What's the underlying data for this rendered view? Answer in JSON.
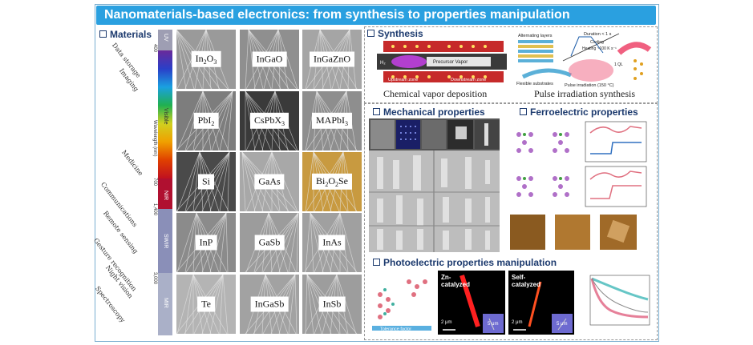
{
  "banner": {
    "title": "Nanomaterials-based electronics: from synthesis to properties manipulation"
  },
  "sections": {
    "materials": "Materials",
    "synthesis": "Synthesis",
    "mechanical": "Mechanical properties",
    "ferroelectric": "Ferroelectric properties",
    "photoelectric": "Photoelectric properties manipulation"
  },
  "applications": [
    "Data storage",
    "Imaging",
    "Medicine",
    "Communications",
    "Remote sensing",
    "Gesture recognition",
    "Night vision",
    "Spectroscopy"
  ],
  "spectrum": {
    "axis_label": "Wavelength (nm)",
    "bands": [
      "UV",
      "Visible",
      "NIR",
      "SWIR",
      "MIR"
    ],
    "ticks": [
      "400",
      "700",
      "1,400",
      "3,000"
    ],
    "colors": {
      "uv": "#9e9eb3",
      "nir": "#b01030",
      "swir": "#8a8fb8",
      "mir": "#aab0c8"
    }
  },
  "materials": [
    {
      "main": "In",
      "sub1": "2",
      "mid": "O",
      "sub2": "3"
    },
    {
      "main": "InGaO",
      "sub1": "",
      "mid": "",
      "sub2": ""
    },
    {
      "main": "InGaZnO",
      "sub1": "",
      "mid": "",
      "sub2": ""
    },
    {
      "main": "PbI",
      "sub1": "2",
      "mid": "",
      "sub2": ""
    },
    {
      "main": "CsPbX",
      "sub1": "3",
      "mid": "",
      "sub2": ""
    },
    {
      "main": "MAPbI",
      "sub1": "3",
      "mid": "",
      "sub2": ""
    },
    {
      "main": "Si",
      "sub1": "",
      "mid": "",
      "sub2": ""
    },
    {
      "main": "GaAs",
      "sub1": "",
      "mid": "",
      "sub2": ""
    },
    {
      "main": "Bi",
      "sub1": "2",
      "mid": "O",
      "sub2": "2",
      "tail": "Se"
    },
    {
      "main": "InP",
      "sub1": "",
      "mid": "",
      "sub2": ""
    },
    {
      "main": "GaSb",
      "sub1": "",
      "mid": "",
      "sub2": ""
    },
    {
      "main": "InAs",
      "sub1": "",
      "mid": "",
      "sub2": ""
    },
    {
      "main": "Te",
      "sub1": "",
      "mid": "",
      "sub2": ""
    },
    {
      "main": "InGaSb",
      "sub1": "",
      "mid": "",
      "sub2": ""
    },
    {
      "main": "InSb",
      "sub1": "",
      "mid": "",
      "sub2": ""
    }
  ],
  "synthesis": {
    "cvd_caption": "Chemical vapor deposition",
    "pulse_caption": "Pulse irradiation synthesis",
    "cvd_labels": {
      "h2": "H₂",
      "precursor": "Precursor Vapor",
      "upstream": "Upstream zone",
      "downstream": "Downstream zone"
    },
    "pulse_labels": {
      "layers": "Alternating layers",
      "flexible": "Flexible substrates",
      "irradiation": "Pulse irradiation (150 °C)",
      "duration": "Duration < 1 s",
      "cooling": "Cooling",
      "heating": "Heating ~100 K s⁻¹",
      "ql": "1 QL"
    }
  },
  "photo": {
    "zn": "Zn-\ncatalyzed",
    "self": "Self-\ncatalyzed",
    "scale1": "2 μm",
    "scale2": "5 μm",
    "scale3": "2 μm",
    "scale4": "5 μm",
    "tolerance": "Tolerance factor"
  }
}
